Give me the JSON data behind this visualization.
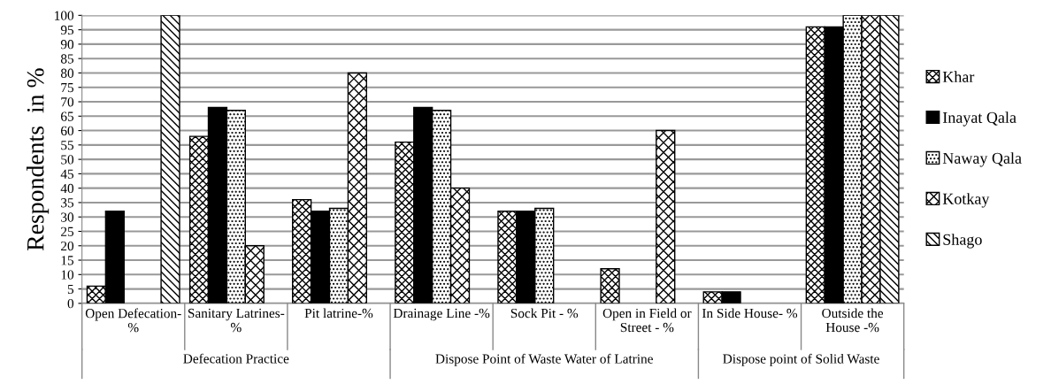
{
  "chart_data": {
    "type": "bar",
    "categories": [
      "Open Defecation-\n%",
      "Sanitary Latrines-\n%",
      "Pit latrine-%",
      "Drainage Line -%",
      "Sock Pit - %",
      "Open in Field or\nStreet - %",
      "In Side House- %",
      "Outside the\nHouse -%"
    ],
    "series": [
      {
        "name": "Khar",
        "color": "#000000",
        "values": [
          6,
          58,
          36,
          56,
          32,
          12,
          4,
          96
        ]
      },
      {
        "name": "Inayat Qala",
        "color": "#000000",
        "values": [
          32,
          68,
          32,
          68,
          32,
          0,
          4,
          96
        ]
      },
      {
        "name": "Naway Qala",
        "color": "#000000",
        "values": [
          0,
          67,
          33,
          67,
          33,
          0,
          0,
          100
        ]
      },
      {
        "name": "Kotkay",
        "color": "#000000",
        "values": [
          0,
          20,
          80,
          40,
          0,
          60,
          0,
          100
        ]
      },
      {
        "name": "Shago",
        "color": "#000000",
        "values": [
          100,
          0,
          0,
          0,
          0,
          0,
          0,
          100
        ]
      }
    ],
    "ylabel": "Respondents  in %",
    "ylim": [
      0,
      100
    ],
    "yticks": [
      0,
      5,
      10,
      15,
      20,
      25,
      30,
      35,
      40,
      45,
      50,
      55,
      60,
      65,
      70,
      75,
      80,
      85,
      90,
      95,
      100
    ],
    "annotations": [
      "Defecation Practice",
      "Dispose Point of Waste Water of Latrine",
      "Dispose point of Solid Waste"
    ],
    "grid": "y",
    "legend": "right"
  }
}
